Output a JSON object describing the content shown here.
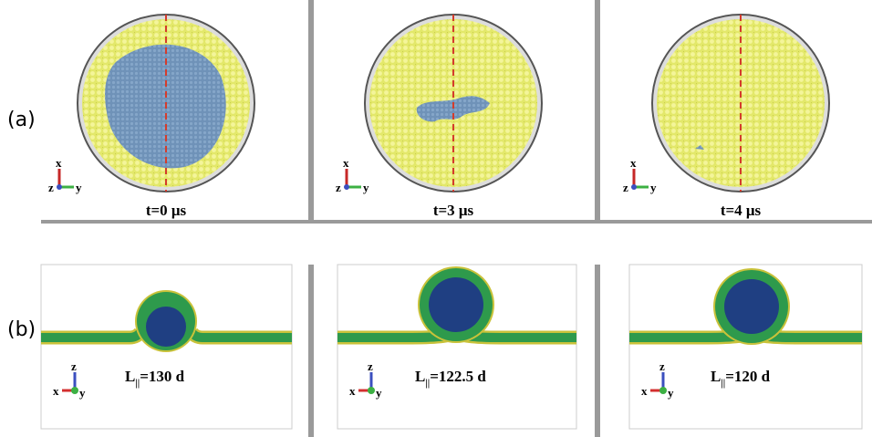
{
  "figure": {
    "row_labels": [
      "(a)",
      "(b)"
    ],
    "top_panels": [
      {
        "caption": "t=0 μs",
        "axes": {
          "up": "x",
          "left": "z",
          "right": "y"
        }
      },
      {
        "caption": "t=3 μs",
        "axes": {
          "up": "x",
          "left": "z",
          "right": "y"
        }
      },
      {
        "caption": "t=4 μs",
        "axes": {
          "up": "x",
          "left": "z",
          "right": "y"
        }
      }
    ],
    "bottom_panels": [
      {
        "caption": {
          "symbol": "L",
          "subscript": "||",
          "text": "=130 d"
        },
        "axes": {
          "up": "z",
          "left": "x",
          "right": "y"
        }
      },
      {
        "caption": {
          "symbol": "L",
          "subscript": "||",
          "text": "=122.5 d"
        },
        "axes": {
          "up": "z",
          "left": "x",
          "right": "y"
        }
      },
      {
        "caption": {
          "symbol": "L",
          "subscript": "||",
          "text": "=120 d"
        },
        "axes": {
          "up": "z",
          "left": "x",
          "right": "y"
        }
      }
    ]
  }
}
